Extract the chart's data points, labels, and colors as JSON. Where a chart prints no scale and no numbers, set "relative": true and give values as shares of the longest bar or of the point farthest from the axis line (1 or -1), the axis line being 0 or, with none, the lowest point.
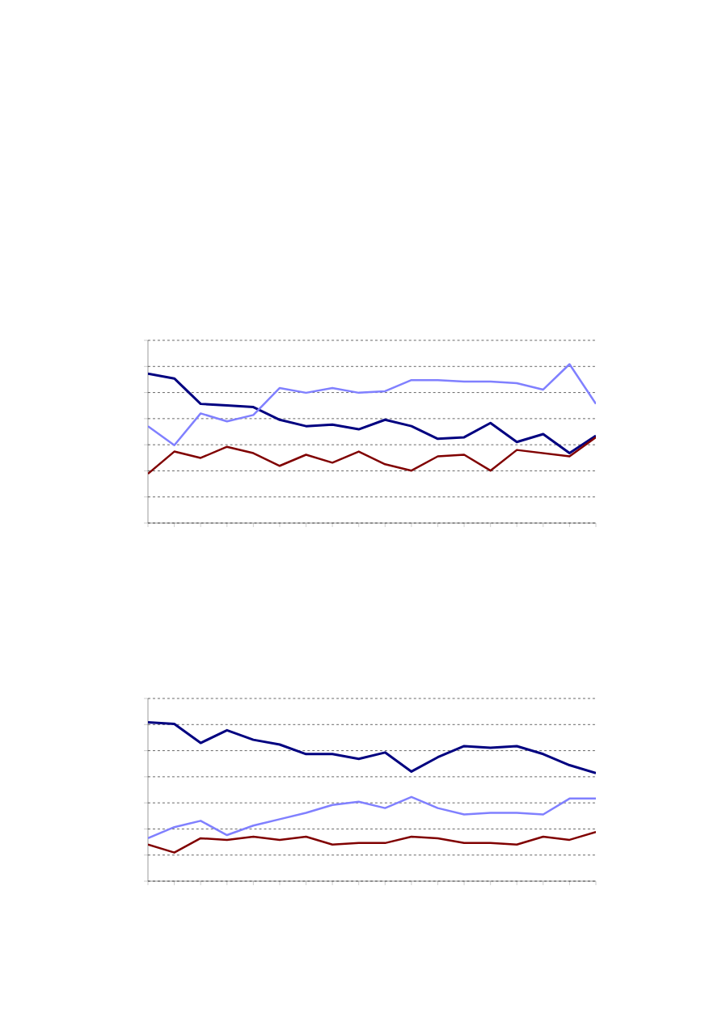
{
  "chart_data": [
    {
      "type": "line",
      "relative": true,
      "grid": "y",
      "categories": [
        null,
        null,
        null,
        null,
        null,
        null,
        null,
        null,
        null,
        null,
        null,
        null,
        null,
        null,
        null,
        null,
        null,
        null
      ],
      "series": [
        {
          "color": "#000080",
          "values": [
            0.94,
            0.91,
            0.75,
            0.74,
            0.73,
            0.65,
            0.61,
            0.62,
            0.59,
            0.65,
            0.61,
            0.53,
            0.54,
            0.63,
            0.51,
            0.56,
            0.44,
            0.55
          ]
        },
        {
          "color": "#8080ff",
          "values": [
            0.61,
            0.49,
            0.69,
            0.64,
            0.68,
            0.85,
            0.82,
            0.85,
            0.82,
            0.83,
            0.9,
            0.9,
            0.89,
            0.89,
            0.88,
            0.84,
            1.0,
            0.75
          ]
        },
        {
          "color": "#800000",
          "values": [
            0.31,
            0.45,
            0.41,
            0.48,
            0.44,
            0.36,
            0.43,
            0.38,
            0.45,
            0.37,
            0.33,
            0.42,
            0.43,
            0.33,
            0.46,
            0.44,
            0.42,
            0.54
          ]
        }
      ]
    },
    {
      "type": "line",
      "relative": true,
      "grid": "y",
      "categories": [
        null,
        null,
        null,
        null,
        null,
        null,
        null,
        null,
        null,
        null,
        null,
        null,
        null,
        null,
        null,
        null,
        null,
        null
      ],
      "series": [
        {
          "color": "#000080",
          "values": [
            1.0,
            0.99,
            0.87,
            0.95,
            0.89,
            0.86,
            0.8,
            0.8,
            0.77,
            0.81,
            0.69,
            0.78,
            0.85,
            0.84,
            0.85,
            0.8,
            0.73,
            0.68
          ]
        },
        {
          "color": "#8080ff",
          "values": [
            0.27,
            0.34,
            0.38,
            0.29,
            0.35,
            0.39,
            0.43,
            0.48,
            0.5,
            0.46,
            0.53,
            0.46,
            0.42,
            0.43,
            0.43,
            0.42,
            0.52,
            0.52
          ]
        },
        {
          "color": "#800000",
          "values": [
            0.23,
            0.18,
            0.27,
            0.26,
            0.28,
            0.26,
            0.28,
            0.23,
            0.24,
            0.24,
            0.28,
            0.27,
            0.24,
            0.24,
            0.23,
            0.28,
            0.26,
            0.31
          ]
        }
      ]
    }
  ]
}
